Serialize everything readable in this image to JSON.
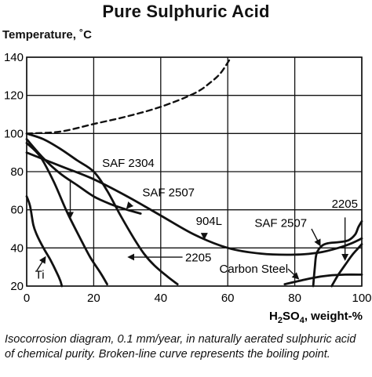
{
  "chart_data": {
    "type": "line",
    "title": "Pure Sulphuric Acid",
    "ylabel": "Temperature, ˚C",
    "xlabel_parts": {
      "a": "H",
      "b": "2",
      "c": "SO",
      "d": "4",
      "e": ", weight-%"
    },
    "xlim": [
      0,
      100
    ],
    "ylim": [
      20,
      140
    ],
    "xticks": [
      0,
      20,
      40,
      60,
      80,
      100
    ],
    "yticks": [
      20,
      40,
      60,
      80,
      100,
      120,
      140
    ],
    "grid": true,
    "series": [
      {
        "name": "Boiling point",
        "style": "dashed",
        "points": [
          [
            0,
            100
          ],
          [
            10,
            101
          ],
          [
            20,
            105
          ],
          [
            30,
            109
          ],
          [
            40,
            114
          ],
          [
            50,
            121
          ],
          [
            55,
            127
          ],
          [
            58,
            132
          ],
          [
            61,
            140
          ]
        ]
      },
      {
        "name": "SAF 2304",
        "style": "solid",
        "points": [
          [
            0,
            100
          ],
          [
            5,
            97
          ],
          [
            10,
            92
          ],
          [
            15,
            86
          ],
          [
            20,
            80
          ],
          [
            24,
            70
          ],
          [
            28,
            57
          ],
          [
            32,
            45
          ],
          [
            35,
            37
          ],
          [
            38,
            31
          ],
          [
            42,
            25
          ],
          [
            45,
            21
          ]
        ]
      },
      {
        "name": "SAF 2507",
        "style": "solid",
        "points": [
          [
            0,
            97
          ],
          [
            5,
            87
          ],
          [
            10,
            79
          ],
          [
            15,
            73
          ],
          [
            20,
            67
          ],
          [
            25,
            63
          ],
          [
            30,
            60
          ],
          [
            34,
            58
          ]
        ]
      },
      {
        "name": "904L",
        "style": "solid",
        "points": [
          [
            0,
            90
          ],
          [
            10,
            83
          ],
          [
            20,
            76
          ],
          [
            30,
            67
          ],
          [
            40,
            57
          ],
          [
            50,
            47
          ],
          [
            60,
            40
          ],
          [
            70,
            37
          ],
          [
            80,
            36.5
          ],
          [
            87,
            37.5
          ],
          [
            93,
            40
          ],
          [
            97,
            42.5
          ],
          [
            100,
            45
          ]
        ]
      },
      {
        "name": "2205",
        "style": "solid",
        "points": [
          [
            0,
            95
          ],
          [
            4,
            88
          ],
          [
            8,
            75
          ],
          [
            12,
            59
          ],
          [
            16,
            45
          ],
          [
            19,
            35
          ],
          [
            22,
            27
          ],
          [
            24,
            21
          ]
        ]
      },
      {
        "name": "Ti",
        "style": "solid",
        "points": [
          [
            0,
            67
          ],
          [
            1,
            62
          ],
          [
            2,
            52
          ],
          [
            3,
            47
          ],
          [
            5,
            40
          ],
          [
            7,
            34
          ],
          [
            9,
            27
          ],
          [
            10,
            23
          ],
          [
            10.5,
            20
          ]
        ]
      },
      {
        "name": "Carbon Steel",
        "style": "solid",
        "points": [
          [
            77,
            21
          ],
          [
            82,
            23
          ],
          [
            86,
            24.5
          ],
          [
            90,
            25.5
          ],
          [
            95,
            26
          ],
          [
            100,
            26
          ]
        ]
      },
      {
        "name": "SAF 2507 (right)",
        "style": "solid",
        "points": [
          [
            85.5,
            20
          ],
          [
            86,
            30
          ],
          [
            86.5,
            37
          ],
          [
            88,
            41
          ],
          [
            90,
            42.5
          ],
          [
            93,
            43
          ],
          [
            96,
            44
          ],
          [
            98,
            47
          ],
          [
            99,
            51
          ],
          [
            100,
            54
          ]
        ]
      },
      {
        "name": "2205 (right)",
        "style": "solid",
        "points": [
          [
            91,
            20
          ],
          [
            93,
            26
          ],
          [
            95,
            31
          ],
          [
            97,
            36
          ],
          [
            99,
            40
          ],
          [
            100,
            42
          ]
        ]
      }
    ],
    "annotations": [
      {
        "id": "saf2304",
        "text": "SAF 2304",
        "tx": 22.5,
        "ty": 82.5,
        "ax": 13,
        "ay": 76,
        "hx": 13,
        "hy": 56
      },
      {
        "id": "saf2507",
        "text": "SAF 2507",
        "tx": 34.5,
        "ty": 67,
        "ax": 31,
        "ay": 63,
        "hx": 30,
        "hy": 61
      },
      {
        "id": "904l",
        "text": "904L",
        "tx": 50.5,
        "ty": 52,
        "ax": 53,
        "ay": 47,
        "hx": 53,
        "hy": 45
      },
      {
        "id": "2205",
        "text": "2205",
        "tx": 47.3,
        "ty": 33,
        "ax": 46.5,
        "ay": 35.2,
        "hx": 30.5,
        "hy": 35.2
      },
      {
        "id": "ti",
        "text": "Ti",
        "tx": 2.5,
        "ty": 24,
        "ax": 3,
        "ay": 28,
        "hx": 5.5,
        "hy": 35
      },
      {
        "id": "carbon-steel",
        "text": "Carbon Steel",
        "tx": 57.5,
        "ty": 27,
        "ax": 78,
        "ay": 29,
        "hx": 81,
        "hy": 24
      },
      {
        "id": "saf2507-right",
        "text": "SAF 2507",
        "tx": 68,
        "ty": 51,
        "ax": 85,
        "ay": 50,
        "hx": 87.5,
        "hy": 41.5
      },
      {
        "id": "2205-right",
        "text": "2205",
        "tx": 91,
        "ty": 61,
        "ax": 95,
        "ay": 56,
        "hx": 95,
        "hy": 34
      }
    ],
    "caption": "Isocorrosion diagram, 0.1 mm/year, in naturally aerated sulphuric acid of chemical purity. Broken-line curve represents the boiling point."
  }
}
